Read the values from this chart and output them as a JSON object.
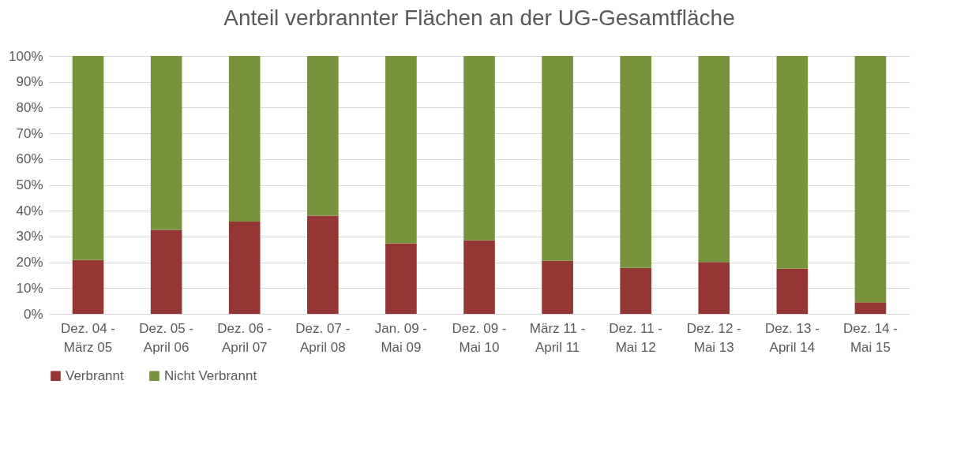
{
  "chart_data": {
    "type": "bar",
    "title": "Anteil verbrannter Flächen an der UG-Gesamtfläche",
    "stacked": true,
    "categories": [
      "Dez. 04 - März 05",
      "Dez. 05 - April 06",
      "Dez. 06 - April 07",
      "Dez. 07 - April 08",
      "Jan. 09 - Mai 09",
      "Dez. 09 - Mai 10",
      "März 11 - April 11",
      "Dez. 11 - Mai 12",
      "Dez. 12 - Mai 13",
      "Dez. 13 - April 14",
      "Dez. 14 - Mai 15"
    ],
    "series": [
      {
        "name": "Verbrannt",
        "color": "#943634",
        "values": [
          20.9,
          32.6,
          35.8,
          38.1,
          27.4,
          28.5,
          20.6,
          17.8,
          20.1,
          17.5,
          4.5
        ]
      },
      {
        "name": "Nicht Verbrannt",
        "color": "#77933c",
        "values": [
          79.1,
          67.4,
          64.2,
          61.9,
          72.6,
          71.5,
          79.4,
          82.2,
          79.9,
          82.5,
          95.5
        ]
      }
    ],
    "ylim": [
      0,
      100
    ],
    "yticks": [
      {
        "value": 0,
        "label": "0%"
      },
      {
        "value": 10,
        "label": "10%"
      },
      {
        "value": 20,
        "label": "20%"
      },
      {
        "value": 30,
        "label": "30%"
      },
      {
        "value": 40,
        "label": "40%"
      },
      {
        "value": 50,
        "label": "50%"
      },
      {
        "value": 60,
        "label": "60%"
      },
      {
        "value": 70,
        "label": "70%"
      },
      {
        "value": 80,
        "label": "80%"
      },
      {
        "value": 90,
        "label": "90%"
      },
      {
        "value": 100,
        "label": "100%"
      }
    ],
    "grid": "y",
    "legend": "bottom"
  }
}
